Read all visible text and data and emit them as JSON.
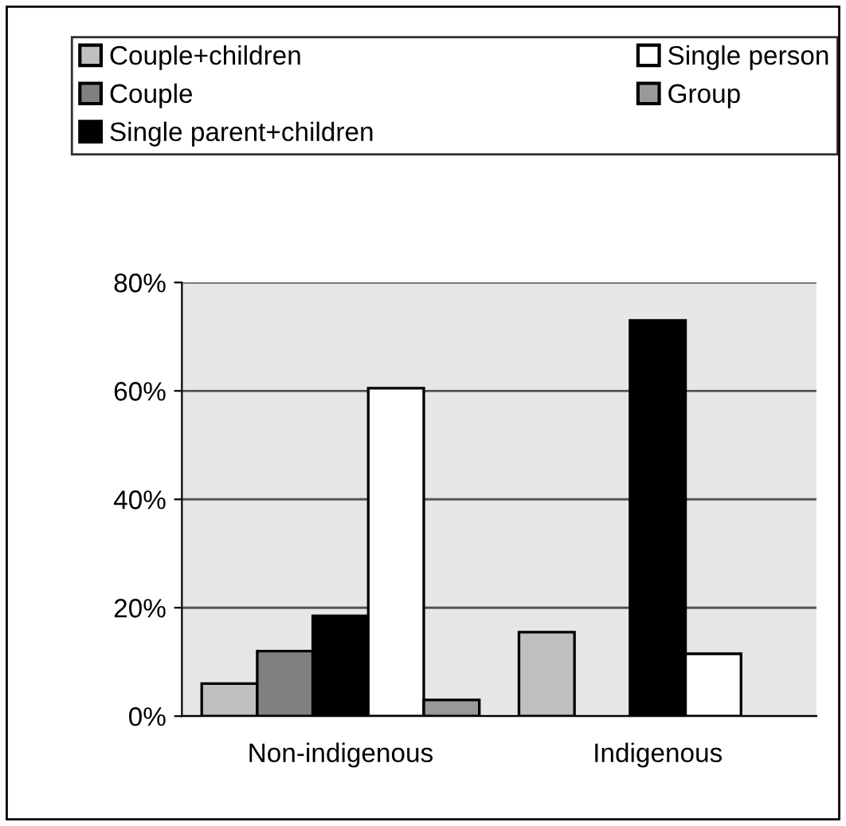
{
  "chart_data": {
    "type": "bar",
    "categories": [
      "Non-indigenous",
      "Indigenous"
    ],
    "series": [
      {
        "name": "Couple+children",
        "color": "#c0c0c0",
        "values": [
          6,
          15.5
        ]
      },
      {
        "name": "Couple",
        "color": "#808080",
        "values": [
          12,
          null
        ]
      },
      {
        "name": "Single parent+children",
        "color": "#000000",
        "values": [
          18.5,
          73
        ]
      },
      {
        "name": "Single person",
        "color": "#ffffff",
        "values": [
          60.5,
          11.5
        ]
      },
      {
        "name": "Group",
        "color": "#999999",
        "values": [
          3,
          null
        ]
      }
    ],
    "ylim": [
      0,
      80
    ],
    "yticks": [
      {
        "value": 0,
        "label": "0%"
      },
      {
        "value": 20,
        "label": "20%"
      },
      {
        "value": 40,
        "label": "40%"
      },
      {
        "value": 60,
        "label": "60%"
      },
      {
        "value": 80,
        "label": "80%"
      }
    ],
    "grid": "y",
    "legend": "top"
  }
}
